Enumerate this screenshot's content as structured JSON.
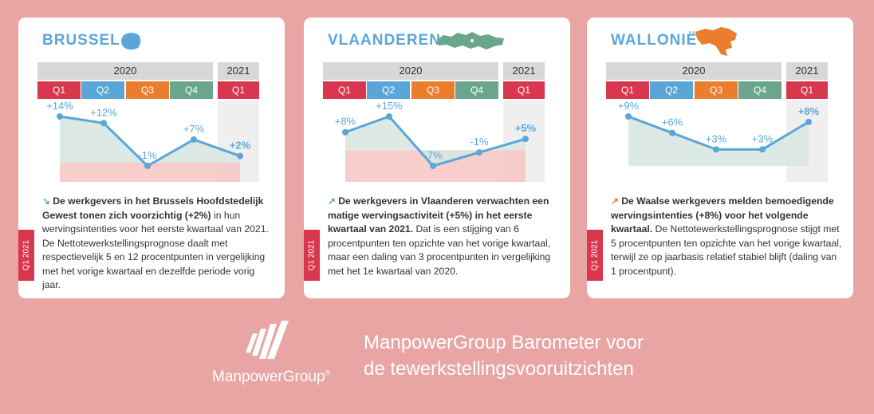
{
  "colors": {
    "q1": "#d9374d",
    "q2": "#5aa6d9",
    "q3": "#ec7d2c",
    "q4": "#6aa68e",
    "line": "#5aa6d9",
    "area": "#d8e7e1",
    "negband": "#f6c5c3",
    "title": "#5aa6d9"
  },
  "header": {
    "year_2020": "2020",
    "year_2021": "2021",
    "quarters": [
      "Q1",
      "Q2",
      "Q3",
      "Q4"
    ],
    "q_2021": "Q1"
  },
  "side_tag": "Q1 2021",
  "cards": [
    {
      "title": "BRUSSEL",
      "icon": "brussels-map-icon",
      "arrow": "↘",
      "bold": "De werkgevers in het Brussels Hoofdste­delijk Gewest tonen zich voorzichtig (+2%)",
      "text": "in hun wervingsintenties voor het eerste kwartaal van 2021. De Nettotewerkstellingsprognose daalt met respectievelijk 5 en 12 procentpunten in vergelijking met het vorige kwartaal en dezelfde periode vorig jaar."
    },
    {
      "title": "VLAANDEREN",
      "icon": "flanders-map-icon",
      "arrow": "↗",
      "bold": "De werkgevers in Vlaanderen verwachten een matige wervingsactiviteit (+5%) in het eerste kwartaal van 2021.",
      "text": "Dat is een stijging van 6 procentpunten ten opzichte van het vorige kwartaal, maar een daling van 3 procentpunten in vergelijking met het 1e kwartaal van 2020."
    },
    {
      "title": "WALLONIË",
      "icon": "wallonia-map-icon",
      "arrow": "↗",
      "bold": "De Waalse werkgevers melden bemoedigende wervingsintenties (+8%) voor het volgende kwartaal.",
      "text": "De Nettotewerkstellingsprognose stijgt met 5 procentpunten ten opzichte van het vorige kwartaal, terwijl ze op jaarbasis relatief stabiel blijft (daling van 1 procentpunt)."
    }
  ],
  "chart_data": [
    {
      "type": "line",
      "categories": [
        "2020 Q1",
        "2020 Q2",
        "2020 Q3",
        "2020 Q4",
        "2021 Q1"
      ],
      "values": [
        14,
        12,
        -1,
        7,
        2
      ],
      "labels": [
        "+14%",
        "+12%",
        "-1%",
        "+7%",
        "+2%"
      ],
      "title": "BRUSSEL"
    },
    {
      "type": "line",
      "categories": [
        "2020 Q1",
        "2020 Q2",
        "2020 Q3",
        "2020 Q4",
        "2021 Q1"
      ],
      "values": [
        8,
        15,
        -7,
        -1,
        5
      ],
      "labels": [
        "+8%",
        "+15%",
        "-7%",
        "-1%",
        "+5%"
      ],
      "title": "VLAANDEREN"
    },
    {
      "type": "line",
      "categories": [
        "2020 Q1",
        "2020 Q2",
        "2020 Q3",
        "2020 Q4",
        "2021 Q1"
      ],
      "values": [
        9,
        6,
        3,
        3,
        8
      ],
      "labels": [
        "+9%",
        "+6%",
        "+3%",
        "+3%",
        "+8%"
      ],
      "title": "WALLONIË"
    }
  ],
  "footer": {
    "brand": "ManpowerGroup",
    "registered": "®",
    "tagline_line1": "ManpowerGroup Barometer voor",
    "tagline_line2": "de tewerkstellingsvooruitzichten"
  }
}
